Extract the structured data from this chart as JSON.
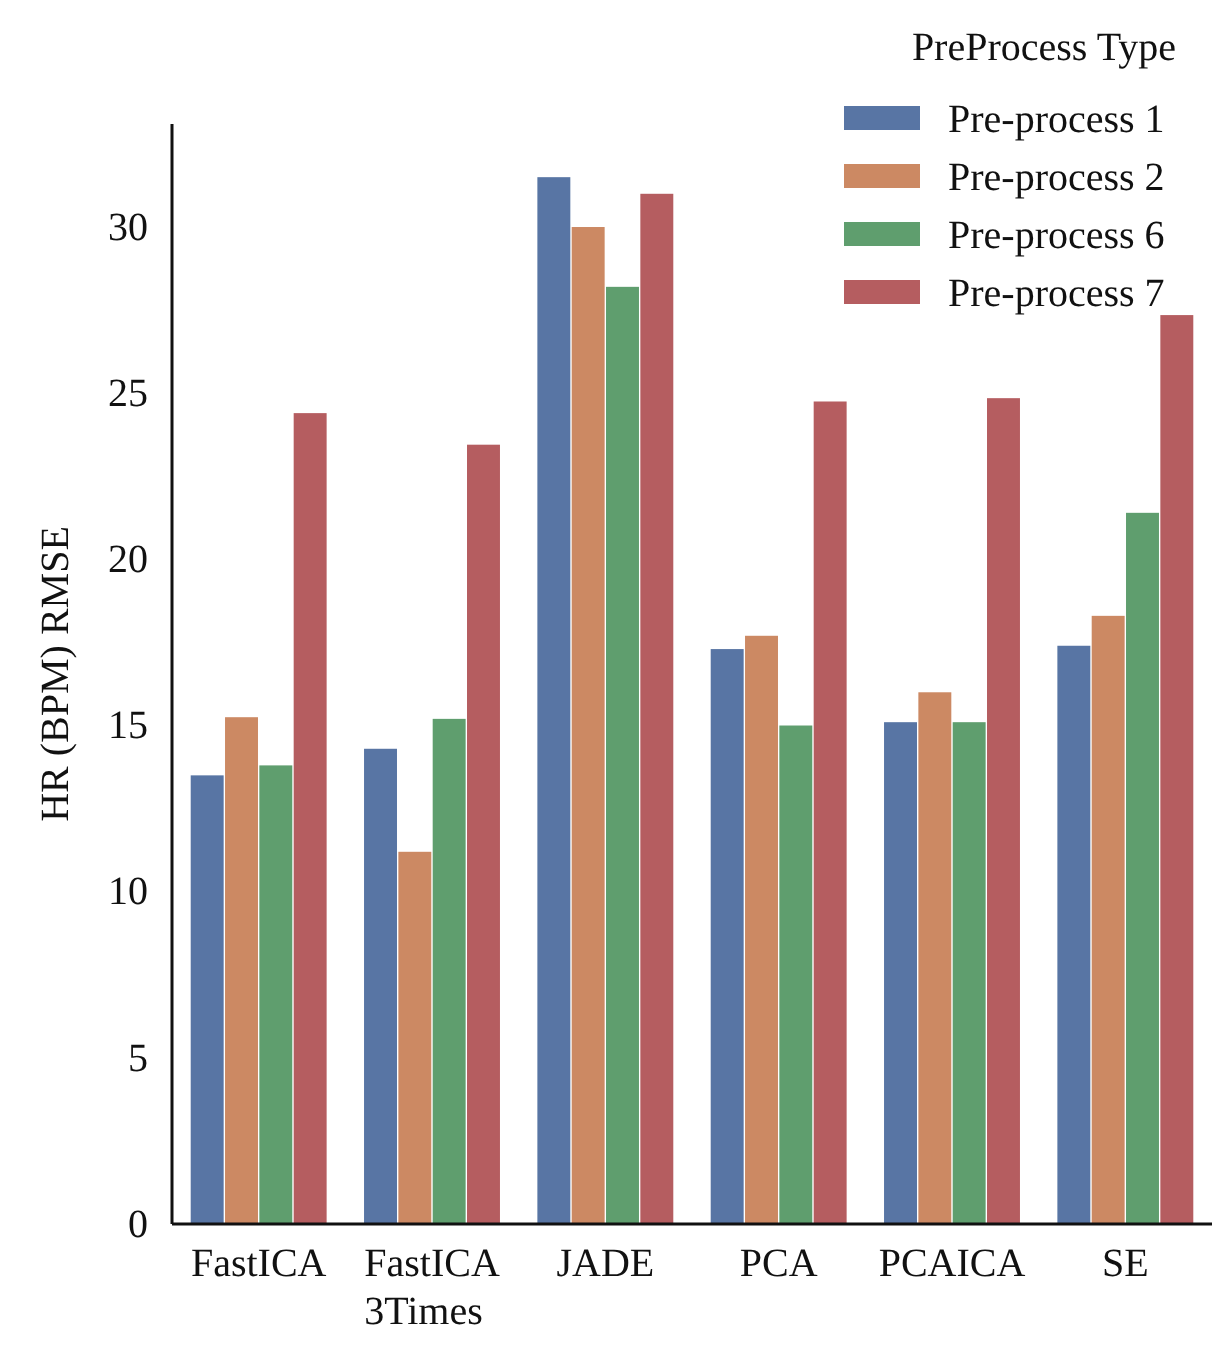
{
  "chart_data": {
    "type": "bar",
    "ylabel": "HR (BPM) RMSE",
    "legend_title": "PreProcess Type",
    "legend": "top right",
    "categories": [
      "FastICA",
      "FastICA 3Times",
      "JADE",
      "PCA",
      "PCAICA",
      "SE"
    ],
    "series": [
      {
        "name": "Pre-process 1",
        "color": "#5875a4",
        "values": [
          13.5,
          14.3,
          31.5,
          17.3,
          15.1,
          17.4
        ]
      },
      {
        "name": "Pre-process 2",
        "color": "#cc8963",
        "values": [
          15.25,
          11.2,
          30.0,
          17.7,
          16.0,
          18.3
        ]
      },
      {
        "name": "Pre-process 6",
        "color": "#5f9e6e",
        "values": [
          13.8,
          15.2,
          28.2,
          15.0,
          15.1,
          21.4
        ]
      },
      {
        "name": "Pre-process 7",
        "color": "#b55d60",
        "values": [
          24.4,
          23.45,
          31.0,
          24.75,
          24.85,
          27.35
        ]
      }
    ],
    "ylim": [
      0,
      33.1
    ],
    "yticks": [
      0,
      5,
      10,
      15,
      20,
      25,
      30
    ],
    "grid": false
  }
}
